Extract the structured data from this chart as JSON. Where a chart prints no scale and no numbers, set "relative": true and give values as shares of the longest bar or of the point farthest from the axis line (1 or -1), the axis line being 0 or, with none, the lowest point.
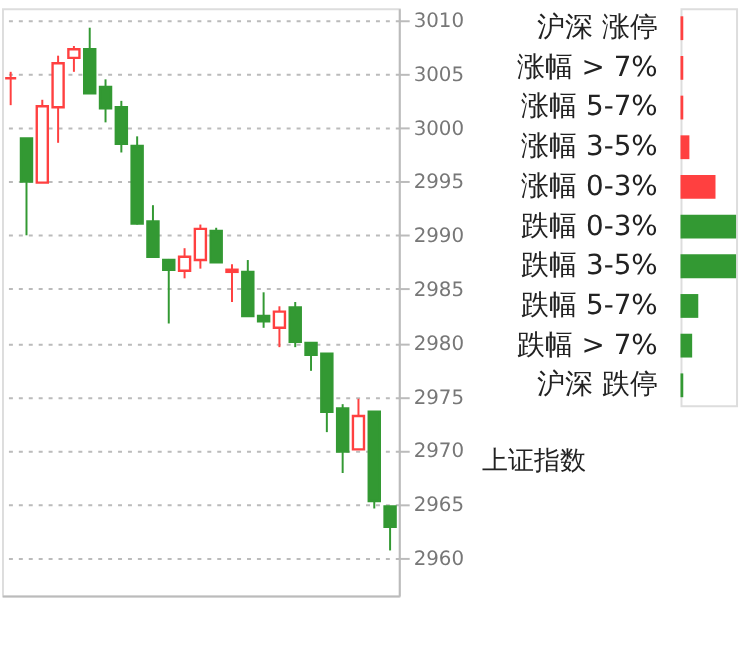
{
  "chart_data": [
    {
      "type": "candlestick",
      "categories": [
        null,
        null,
        null,
        null,
        null,
        null,
        null,
        null,
        null,
        null,
        null,
        null,
        null,
        null,
        null,
        null,
        null,
        null,
        null,
        null,
        null,
        null,
        null,
        null,
        null
      ],
      "ohlc": [
        [
          3004.6,
          3005.2,
          3002.1,
          3004.6
        ],
        [
          2999.0,
          2999.0,
          2990.0,
          2995.0
        ],
        [
          2994.9,
          3002.6,
          2994.9,
          3002.0
        ],
        [
          3001.9,
          3006.7,
          2998.6,
          3006.0
        ],
        [
          3006.5,
          3007.6,
          3005.2,
          3007.3
        ],
        [
          3007.3,
          3009.3,
          3003.2,
          3003.2
        ],
        [
          3003.8,
          3004.5,
          3000.5,
          3001.8
        ],
        [
          3001.9,
          3002.5,
          2997.7,
          2998.5
        ],
        [
          2998.3,
          2999.2,
          2991.0,
          2991.1
        ],
        [
          2991.3,
          2992.8,
          2988.0,
          2988.0
        ],
        [
          2987.7,
          2987.8,
          2981.8,
          2986.8
        ],
        [
          2986.7,
          2988.8,
          2986.0,
          2988.0
        ],
        [
          2987.7,
          2991.0,
          2986.9,
          2990.6
        ],
        [
          2990.4,
          2990.7,
          2987.5,
          2987.5
        ],
        [
          2986.6,
          2987.3,
          2983.8,
          2986.8
        ],
        [
          2986.6,
          2987.7,
          2982.5,
          2982.5
        ],
        [
          2982.5,
          2984.7,
          2981.4,
          2982.0
        ],
        [
          2981.4,
          2983.4,
          2979.6,
          2982.9
        ],
        [
          2983.3,
          2983.8,
          2979.6,
          2980.1
        ],
        [
          2980.0,
          2980.0,
          2977.4,
          2978.9
        ],
        [
          2979.0,
          2979.0,
          2971.7,
          2973.6
        ],
        [
          2973.9,
          2974.3,
          2967.9,
          2969.9
        ],
        [
          2970.1,
          2974.8,
          2970.1,
          2973.2
        ],
        [
          2973.6,
          2973.6,
          2964.6,
          2965.3
        ],
        [
          2964.8,
          2964.8,
          2960.7,
          2962.9
        ]
      ],
      "colors": [
        "#ff4040",
        "#339933",
        "#ff4040",
        "#ff4040",
        "#ff4040",
        "#339933",
        "#339933",
        "#339933",
        "#339933",
        "#339933",
        "#339933",
        "#ff4040",
        "#ff4040",
        "#339933",
        "#ff4040",
        "#339933",
        "#339933",
        "#ff4040",
        "#339933",
        "#339933",
        "#339933",
        "#339933",
        "#ff4040",
        "#339933",
        "#339933"
      ],
      "ylim": [
        2956.5,
        3011.1
      ],
      "yticks": [
        2960,
        2965,
        2970,
        2975,
        2980,
        2985,
        2990,
        2995,
        3000,
        3005,
        3010
      ],
      "grid": "y"
    },
    {
      "type": "bar",
      "orientation": "horizontal",
      "relative": true,
      "categories": [
        "沪深 涨停",
        "涨幅 > 7%",
        "涨幅 5-7%",
        "涨幅 3-5%",
        "涨幅 0-3%",
        "跌幅 0-3%",
        "跌幅 3-5%",
        "跌幅 5-7%",
        "跌幅 > 7%",
        "沪深 跌停"
      ],
      "values": [
        0.05,
        0.05,
        0.05,
        0.16,
        0.63,
        1,
        1,
        0.32,
        0.21,
        0.05
      ],
      "colors": [
        "#ff4040",
        "#ff4040",
        "#ff4040",
        "#ff4040",
        "#ff4040",
        "#339933",
        "#339933",
        "#339933",
        "#339933",
        "#339933"
      ],
      "annotations": [
        "上证指数"
      ]
    }
  ]
}
